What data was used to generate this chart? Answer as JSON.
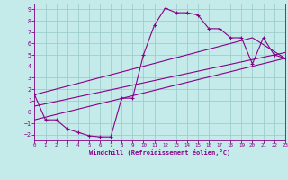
{
  "xlabel": "Windchill (Refroidissement éolien,°C)",
  "bg_color": "#c4eaea",
  "line_color": "#880088",
  "grid_color": "#9ecece",
  "xlim": [
    0,
    23
  ],
  "ylim": [
    -2.5,
    9.5
  ],
  "xticks": [
    0,
    1,
    2,
    3,
    4,
    5,
    6,
    7,
    8,
    9,
    10,
    11,
    12,
    13,
    14,
    15,
    16,
    17,
    18,
    19,
    20,
    21,
    22,
    23
  ],
  "yticks": [
    -2,
    -1,
    0,
    1,
    2,
    3,
    4,
    5,
    6,
    7,
    8,
    9
  ],
  "series1_x": [
    0,
    1,
    2,
    3,
    4,
    5,
    6,
    7,
    8,
    9,
    10,
    11,
    12,
    13,
    14,
    15,
    16,
    17,
    18,
    19,
    20,
    21,
    22,
    23
  ],
  "series1_y": [
    1.5,
    -0.7,
    -0.7,
    -1.5,
    -1.8,
    -2.1,
    -2.2,
    -2.2,
    1.2,
    1.2,
    5.0,
    7.6,
    9.1,
    8.7,
    8.7,
    8.5,
    7.3,
    7.3,
    6.5,
    6.5,
    4.2,
    6.5,
    5.0,
    4.7
  ],
  "series2_x": [
    0,
    20,
    23
  ],
  "series2_y": [
    1.5,
    6.5,
    4.7
  ],
  "series3_x": [
    0,
    23
  ],
  "series3_y": [
    -0.7,
    4.7
  ],
  "series4_x": [
    0,
    23
  ],
  "series4_y": [
    0.5,
    5.2
  ]
}
